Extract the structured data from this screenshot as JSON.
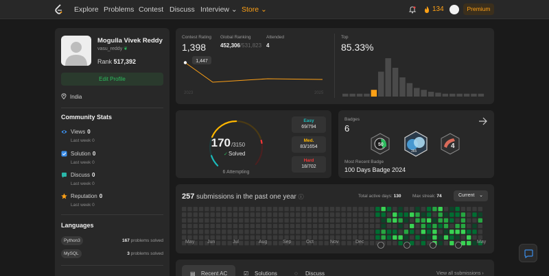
{
  "nav": {
    "items": [
      "Explore",
      "Problems",
      "Contest",
      "Discuss",
      "Interview",
      "Store"
    ],
    "coins": "134",
    "premium": "Premium"
  },
  "profile": {
    "name": "Mogulla Vivek Reddy",
    "username": "vasu_reddy",
    "rank_label": "Rank",
    "rank_value": "517,392",
    "edit_label": "Edit Profile",
    "location": "India"
  },
  "community": {
    "title": "Community Stats",
    "stats": [
      {
        "label": "Views",
        "value": "0",
        "sub": "Last week 0",
        "icon": "eye-icon",
        "color": "#3b8eea"
      },
      {
        "label": "Solution",
        "value": "0",
        "sub": "Last week 0",
        "icon": "solution-icon",
        "color": "#3b8eea"
      },
      {
        "label": "Discuss",
        "value": "0",
        "sub": "Last week 0",
        "icon": "discuss-icon",
        "color": "#2ab7a9"
      },
      {
        "label": "Reputation",
        "value": "0",
        "sub": "Last week 0",
        "icon": "star-icon",
        "color": "#ffa116"
      }
    ]
  },
  "languages": {
    "title": "Languages",
    "items": [
      {
        "name": "Python3",
        "count": "167",
        "suffix": " problems solved"
      },
      {
        "name": "MySQL",
        "count": "3",
        "suffix": " problems solved"
      }
    ]
  },
  "contest": {
    "rating_label": "Contest Rating",
    "rating": "1,398",
    "global_label": "Global Ranking",
    "global_value": "452,306",
    "global_total": "/531,823",
    "attended_label": "Attended",
    "attended": "4",
    "tooltip": "1,447",
    "years": [
      "2023",
      "2025"
    ],
    "top_label": "Top",
    "top_value": "85.33%",
    "chart_data": {
      "type": "line",
      "x": [
        1,
        2,
        3,
        4
      ],
      "y": [
        1447,
        1390,
        1400,
        1398
      ],
      "ylim": [
        1380,
        1460
      ]
    },
    "histogram": [
      3,
      3,
      3,
      3,
      7,
      26,
      40,
      30,
      20,
      14,
      9,
      7,
      5,
      4,
      3,
      3,
      3,
      3,
      3,
      3
    ],
    "highlight_index": 4
  },
  "solved": {
    "count": "170",
    "total": "/3150",
    "label": "Solved",
    "attempting": "6 Attempting",
    "difficulty": [
      {
        "label": "Easy",
        "value": "69/794",
        "color": "#1cbaba",
        "fraction": 0.405
      },
      {
        "label": "Med.",
        "value": "83/1654",
        "color": "#ffb700",
        "fraction": 0.488
      },
      {
        "label": "Hard",
        "value": "18/702",
        "color": "#f63737",
        "fraction": 0.106
      }
    ]
  },
  "badges": {
    "label": "Badges",
    "count": "6",
    "recent_label": "Most Recent Badge",
    "recent_name": "100 Days Badge 2024"
  },
  "submissions": {
    "count": "257",
    "suffix": "submissions in the past one year",
    "active_label": "Total active days:",
    "active_value": "130",
    "streak_label": "Max streak:",
    "streak_value": "74",
    "current": "Current",
    "months": [
      "May",
      "Jun",
      "Jul",
      "Aug",
      "Sep",
      "Oct",
      "Nov",
      "Dec",
      "May"
    ]
  },
  "tabs": {
    "items": [
      "Recent AC",
      "Solutions",
      "Discuss"
    ],
    "view_all": "View all submissions"
  }
}
